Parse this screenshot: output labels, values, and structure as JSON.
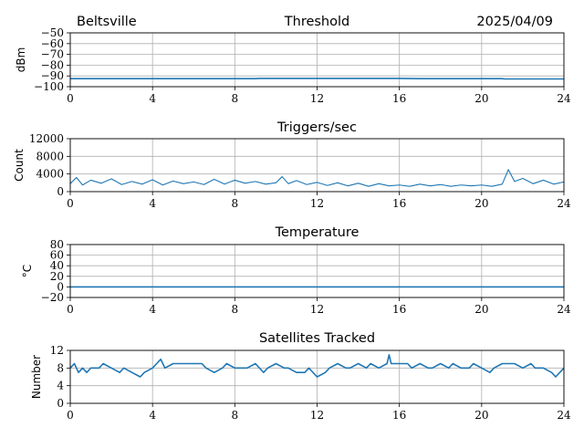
{
  "header": {
    "location": "Beltsville",
    "date": "2025/04/09"
  },
  "colors": {
    "series": "#1f77b4",
    "grid": "#b0b0b0"
  },
  "chart_data": [
    {
      "type": "line",
      "title": "Threshold",
      "ylabel": "dBm",
      "xlim": [
        0,
        24
      ],
      "ylim": [
        -100,
        -50
      ],
      "xticks": [
        0,
        4,
        8,
        12,
        16,
        20,
        24
      ],
      "yticks": [
        -100,
        -90,
        -80,
        -70,
        -60,
        -50
      ],
      "ytick_labels": [
        "−100",
        "−90",
        "−80",
        "−70",
        "−60",
        "−50"
      ],
      "grid": true,
      "series": [
        {
          "x": [
            0,
            2,
            4,
            6,
            8,
            9,
            9.2,
            10,
            11,
            12,
            14,
            16,
            17,
            18,
            20,
            21,
            21.1,
            22,
            24
          ],
          "values": [
            -92.5,
            -92.5,
            -92.5,
            -92.5,
            -92.5,
            -92.5,
            -92.3,
            -92.3,
            -92.3,
            -92.3,
            -92.3,
            -92.3,
            -92.5,
            -92.5,
            -92.5,
            -92.5,
            -92.8,
            -92.8,
            -92.8
          ]
        }
      ]
    },
    {
      "type": "line",
      "title": "Triggers/sec",
      "ylabel": "Count",
      "xlim": [
        0,
        24
      ],
      "ylim": [
        0,
        12000
      ],
      "xticks": [
        0,
        4,
        8,
        12,
        16,
        20,
        24
      ],
      "yticks": [
        0,
        4000,
        8000,
        12000
      ],
      "ytick_labels": [
        "0",
        "4000",
        "8000",
        "12000"
      ],
      "grid": true,
      "series": [
        {
          "x": [
            0,
            0.3,
            0.6,
            1.0,
            1.5,
            2.0,
            2.5,
            3.0,
            3.5,
            4.0,
            4.5,
            5.0,
            5.5,
            6.0,
            6.5,
            7.0,
            7.5,
            8.0,
            8.5,
            9.0,
            9.5,
            10.0,
            10.3,
            10.6,
            11.0,
            11.5,
            12.0,
            12.5,
            13.0,
            13.5,
            14.0,
            14.5,
            15.0,
            15.5,
            16.0,
            16.5,
            17.0,
            17.5,
            18.0,
            18.5,
            19.0,
            19.5,
            20.0,
            20.5,
            21.0,
            21.3,
            21.6,
            22.0,
            22.5,
            23.0,
            23.5,
            24.0
          ],
          "values": [
            1800,
            3200,
            1500,
            2600,
            1900,
            2900,
            1600,
            2300,
            1700,
            2700,
            1500,
            2400,
            1800,
            2200,
            1600,
            2800,
            1700,
            2600,
            1900,
            2300,
            1700,
            2000,
            3400,
            1800,
            2500,
            1600,
            2100,
            1400,
            2000,
            1300,
            1900,
            1200,
            1800,
            1300,
            1500,
            1200,
            1700,
            1300,
            1600,
            1200,
            1500,
            1300,
            1500,
            1200,
            1700,
            5000,
            2300,
            3000,
            1800,
            2600,
            1700,
            2200
          ]
        }
      ]
    },
    {
      "type": "line",
      "title": "Temperature",
      "ylabel": "°C",
      "xlim": [
        0,
        24
      ],
      "ylim": [
        -20,
        80
      ],
      "xticks": [
        0,
        4,
        8,
        12,
        16,
        20,
        24
      ],
      "yticks": [
        -20,
        0,
        20,
        40,
        60,
        80
      ],
      "ytick_labels": [
        "−20",
        "0",
        "20",
        "40",
        "60",
        "80"
      ],
      "grid": true,
      "series": [
        {
          "x": [
            0,
            24
          ],
          "values": [
            0,
            0
          ]
        }
      ]
    },
    {
      "type": "line",
      "title": "Satellites Tracked",
      "ylabel": "Number",
      "xlim": [
        0,
        24
      ],
      "ylim": [
        0,
        12
      ],
      "xticks": [
        0,
        4,
        8,
        12,
        16,
        20,
        24
      ],
      "yticks": [
        0,
        4,
        8,
        12
      ],
      "ytick_labels": [
        "0",
        "4",
        "8",
        "12"
      ],
      "grid": true,
      "series": [
        {
          "x": [
            0,
            0.2,
            0.4,
            0.6,
            0.8,
            1.0,
            1.4,
            1.6,
            2.0,
            2.4,
            2.6,
            3.0,
            3.4,
            3.6,
            4.0,
            4.2,
            4.4,
            4.6,
            5.0,
            5.6,
            6.0,
            6.4,
            6.6,
            7.0,
            7.4,
            7.6,
            8.0,
            8.6,
            9.0,
            9.4,
            9.6,
            10.0,
            10.4,
            10.6,
            11.0,
            11.4,
            11.6,
            12.0,
            12.4,
            12.6,
            13.0,
            13.4,
            13.6,
            14.0,
            14.4,
            14.6,
            15.0,
            15.4,
            15.5,
            15.6,
            16.0,
            16.4,
            16.6,
            17.0,
            17.4,
            17.6,
            18.0,
            18.4,
            18.6,
            19.0,
            19.4,
            19.6,
            20.0,
            20.4,
            20.6,
            21.0,
            21.4,
            21.6,
            22.0,
            22.4,
            22.6,
            23.0,
            23.4,
            23.6,
            24.0
          ],
          "values": [
            8,
            9,
            7,
            8,
            7,
            8,
            8,
            9,
            8,
            7,
            8,
            7,
            6,
            7,
            8,
            9,
            10,
            8,
            9,
            9,
            9,
            9,
            8,
            7,
            8,
            9,
            8,
            8,
            9,
            7,
            8,
            9,
            8,
            8,
            7,
            7,
            8,
            6,
            7,
            8,
            9,
            8,
            8,
            9,
            8,
            9,
            8,
            9,
            11,
            9,
            9,
            9,
            8,
            9,
            8,
            8,
            9,
            8,
            9,
            8,
            8,
            9,
            8,
            7,
            8,
            9,
            9,
            9,
            8,
            9,
            8,
            8,
            7,
            6,
            8
          ]
        }
      ]
    }
  ]
}
